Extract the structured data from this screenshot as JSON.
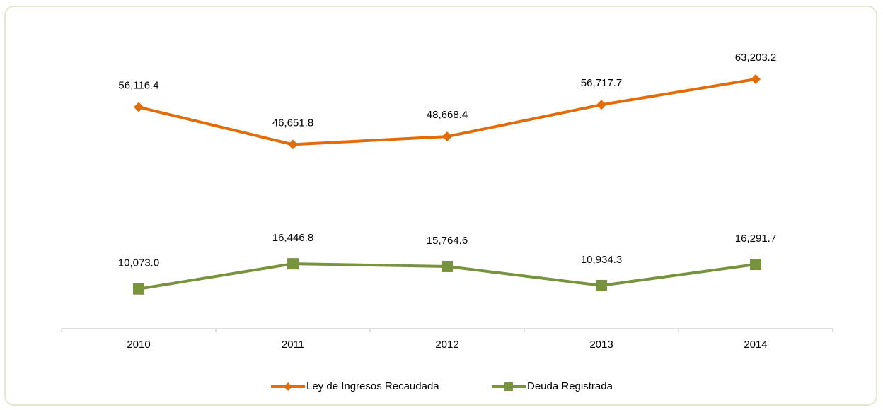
{
  "chart_data": {
    "type": "line",
    "categories": [
      "2010",
      "2011",
      "2012",
      "2013",
      "2014"
    ],
    "series": [
      {
        "name": "Ley de Ingresos Recaudada",
        "color": "#e36c0a",
        "marker": "diamond",
        "values": [
          56116.4,
          46651.8,
          48668.4,
          56717.7,
          63203.2
        ],
        "value_labels": [
          "56,116.4",
          "46,651.8",
          "48,668.4",
          "56,717.7",
          "63,203.2"
        ]
      },
      {
        "name": "Deuda Registrada",
        "color": "#77933c",
        "marker": "square",
        "values": [
          10073.0,
          16446.8,
          15764.6,
          10934.3,
          16291.7
        ],
        "value_labels": [
          "10,073.0",
          "16,446.8",
          "15,764.6",
          "10,934.3",
          "16,291.7"
        ]
      }
    ],
    "ylim": [
      0,
      70000
    ],
    "legend": "bottom"
  }
}
